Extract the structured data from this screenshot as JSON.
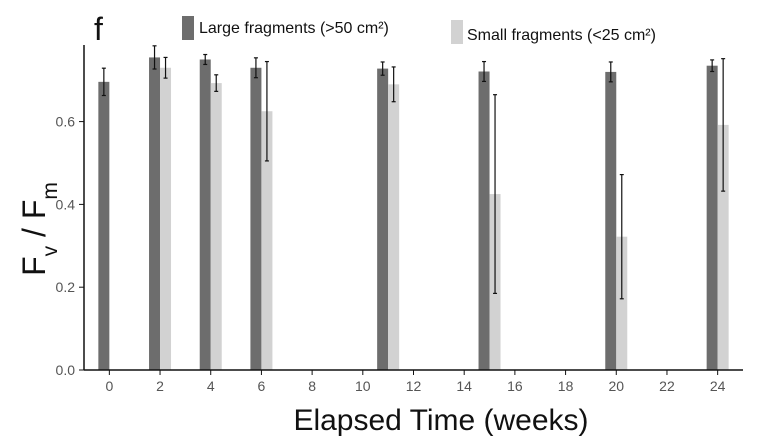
{
  "panel_label": "f",
  "colors": {
    "large": "#6d6d6d",
    "small": "#d2d2d2",
    "axis": "#111111",
    "error_bar": "#111111"
  },
  "chart_data": {
    "type": "bar",
    "title": "",
    "xlabel": "Elapsed Time (weeks)",
    "ylabel_main": "F",
    "ylabel_sub1": "v",
    "ylabel_sep": " / F",
    "ylabel_sub2": "m",
    "xlim": [
      -1,
      25
    ],
    "ylim": [
      0,
      0.785
    ],
    "x_ticks": [
      0,
      2,
      4,
      6,
      8,
      10,
      12,
      14,
      16,
      18,
      20,
      22,
      24
    ],
    "y_ticks": [
      0.0,
      0.2,
      0.4,
      0.6
    ],
    "y_tick_labels": [
      "0.0",
      "0.2",
      "0.4",
      "0.6"
    ],
    "legend_position": "top",
    "grid": false,
    "series": [
      {
        "name": "Large fragments (>50 cm²)",
        "color_key": "large",
        "points": [
          {
            "x": 0,
            "y": 0.696,
            "err": 0.033
          },
          {
            "x": 2,
            "y": 0.755,
            "err": 0.028
          },
          {
            "x": 4,
            "y": 0.75,
            "err": 0.012
          },
          {
            "x": 6,
            "y": 0.73,
            "err": 0.024
          },
          {
            "x": 11,
            "y": 0.728,
            "err": 0.016
          },
          {
            "x": 15,
            "y": 0.721,
            "err": 0.024
          },
          {
            "x": 20,
            "y": 0.72,
            "err": 0.024
          },
          {
            "x": 24,
            "y": 0.735,
            "err": 0.014
          }
        ]
      },
      {
        "name": "Small fragments (<25 cm²)",
        "color_key": "small",
        "points": [
          {
            "x": 2,
            "y": 0.73,
            "err": 0.025
          },
          {
            "x": 4,
            "y": 0.693,
            "err": 0.02
          },
          {
            "x": 6,
            "y": 0.625,
            "err": 0.12
          },
          {
            "x": 11,
            "y": 0.69,
            "err": 0.042
          },
          {
            "x": 15,
            "y": 0.425,
            "err": 0.24
          },
          {
            "x": 20,
            "y": 0.322,
            "err": 0.15
          },
          {
            "x": 24,
            "y": 0.592,
            "err": 0.16
          }
        ]
      }
    ]
  }
}
